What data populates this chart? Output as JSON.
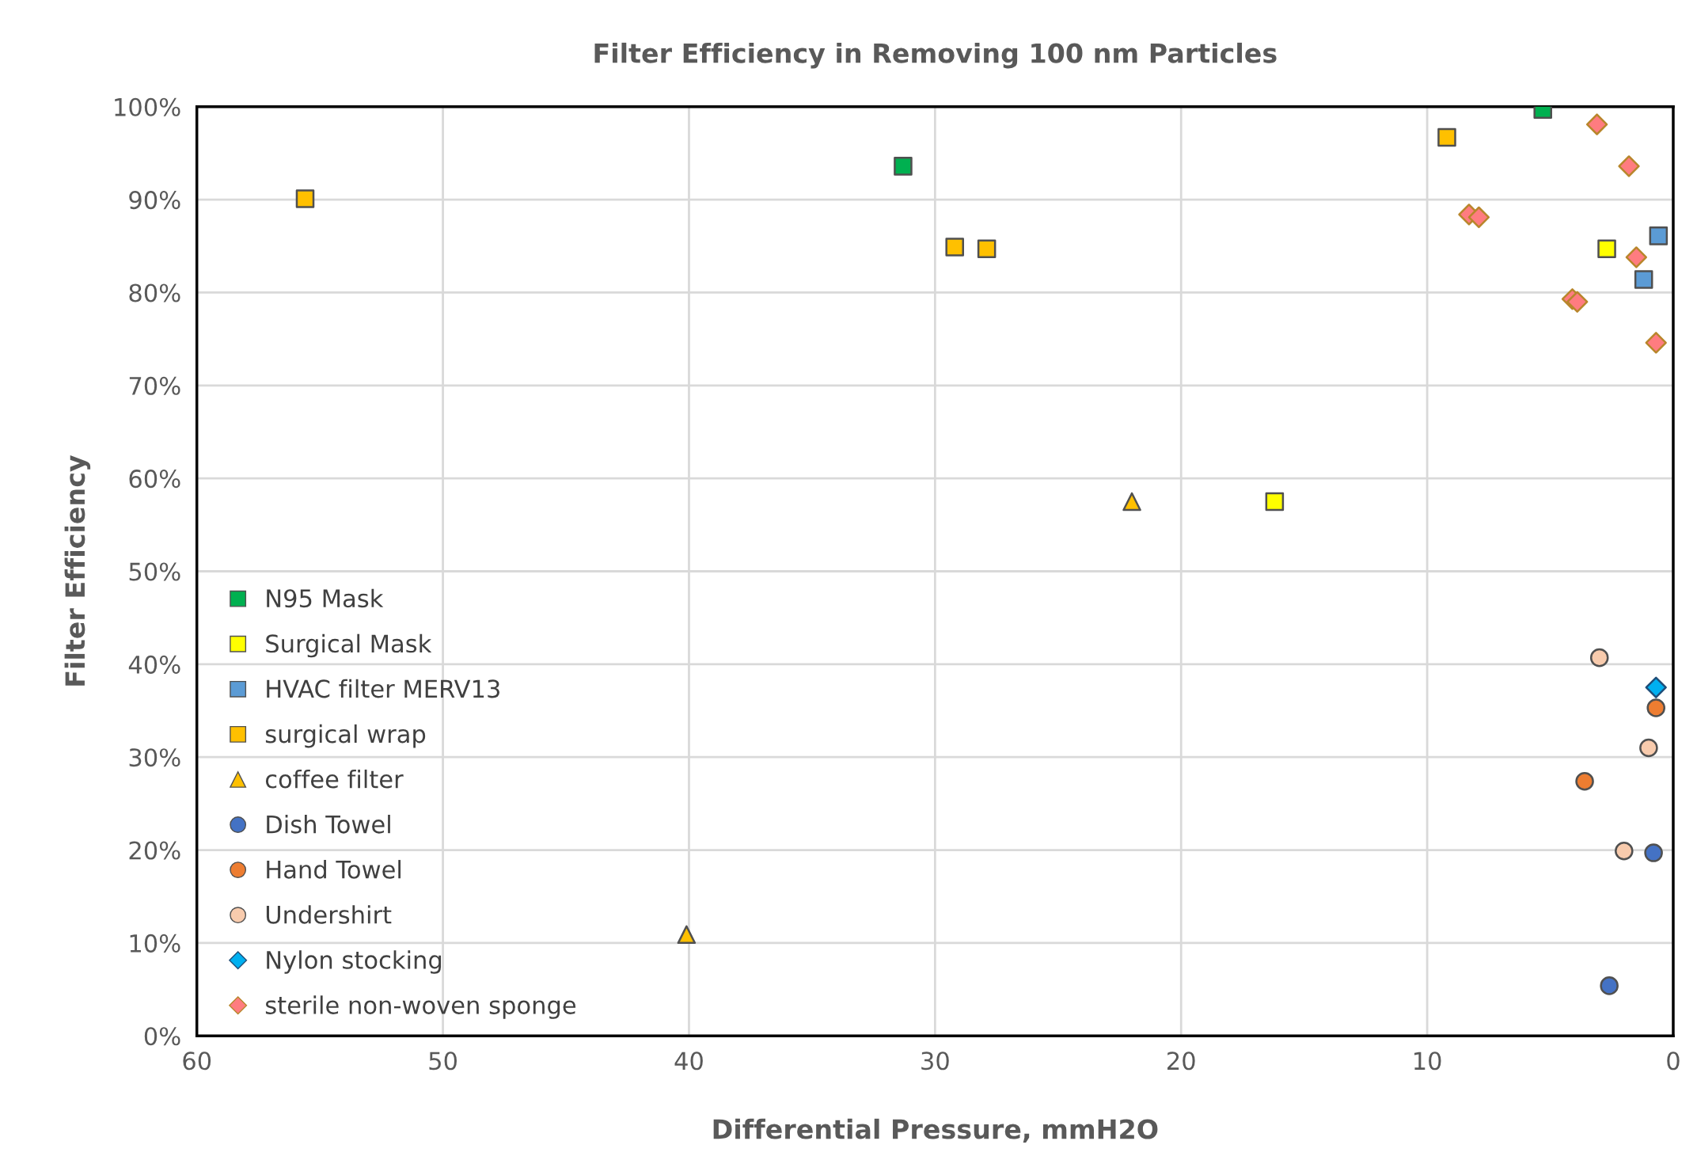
{
  "chart_data": {
    "type": "scatter",
    "title": "Filter Efficiency in Removing 100 nm Particles",
    "xlabel": "Differential Pressure, mmH2O",
    "ylabel": "Filter Efficiency",
    "xlim": [
      60,
      0
    ],
    "xticks": [
      60,
      50,
      40,
      30,
      20,
      10,
      0
    ],
    "ylim": [
      0,
      100
    ],
    "yticks": [
      {
        "value": 0,
        "label": "0%"
      },
      {
        "value": 10,
        "label": "10%"
      },
      {
        "value": 20,
        "label": "20%"
      },
      {
        "value": 30,
        "label": "30%"
      },
      {
        "value": 40,
        "label": "40%"
      },
      {
        "value": 50,
        "label": "50%"
      },
      {
        "value": 60,
        "label": "60%"
      },
      {
        "value": 70,
        "label": "70%"
      },
      {
        "value": 80,
        "label": "80%"
      },
      {
        "value": 90,
        "label": "90%"
      },
      {
        "value": 100,
        "label": "100%"
      }
    ],
    "grid": true,
    "legend": "bottom left",
    "series": [
      {
        "name": "N95 Mask",
        "color": "#00b050",
        "marker": "square",
        "x": [
          5.3,
          31.3
        ],
        "values": [
          99.7,
          93.6
        ]
      },
      {
        "name": "Surgical Mask",
        "color": "#ffff00",
        "marker": "square",
        "x": [
          2.7,
          16.2
        ],
        "values": [
          84.7,
          57.5
        ]
      },
      {
        "name": "HVAC filter MERV13",
        "color": "#5b9bd5",
        "marker": "square",
        "x": [
          0.6,
          1.2
        ],
        "values": [
          86.1,
          81.4
        ]
      },
      {
        "name": "surgical wrap",
        "color": "#ffc000",
        "marker": "square",
        "x": [
          55.6,
          29.2,
          27.9,
          9.2
        ],
        "values": [
          90.1,
          84.9,
          84.7,
          96.7
        ]
      },
      {
        "name": "coffee filter",
        "color": "#ffc000",
        "marker": "triangle",
        "x": [
          22.0,
          40.1
        ],
        "values": [
          57.5,
          10.9
        ]
      },
      {
        "name": "Dish Towel",
        "color": "#4472c4",
        "marker": "circle",
        "x": [
          0.8,
          2.6
        ],
        "values": [
          19.7,
          5.4
        ]
      },
      {
        "name": "Hand Towel",
        "color": "#ed7d31",
        "marker": "circle",
        "x": [
          0.7,
          3.6
        ],
        "values": [
          35.3,
          27.4
        ]
      },
      {
        "name": "Undershirt",
        "color": "#f8cbad",
        "marker": "circle",
        "x": [
          3.0,
          1.0,
          2.0
        ],
        "values": [
          40.7,
          31.0,
          19.9
        ]
      },
      {
        "name": "Nylon stocking",
        "color": "#00b0f0",
        "marker": "diamond",
        "x": [
          0.7
        ],
        "values": [
          37.5
        ]
      },
      {
        "name": "sterile non-woven sponge",
        "color": "#ff7c80",
        "marker": "diamond",
        "x": [
          3.1,
          1.8,
          8.3,
          7.9,
          1.5,
          4.1,
          3.9,
          0.7
        ],
        "values": [
          98.1,
          93.6,
          88.4,
          88.1,
          83.8,
          79.3,
          79.0,
          74.6
        ]
      }
    ]
  }
}
